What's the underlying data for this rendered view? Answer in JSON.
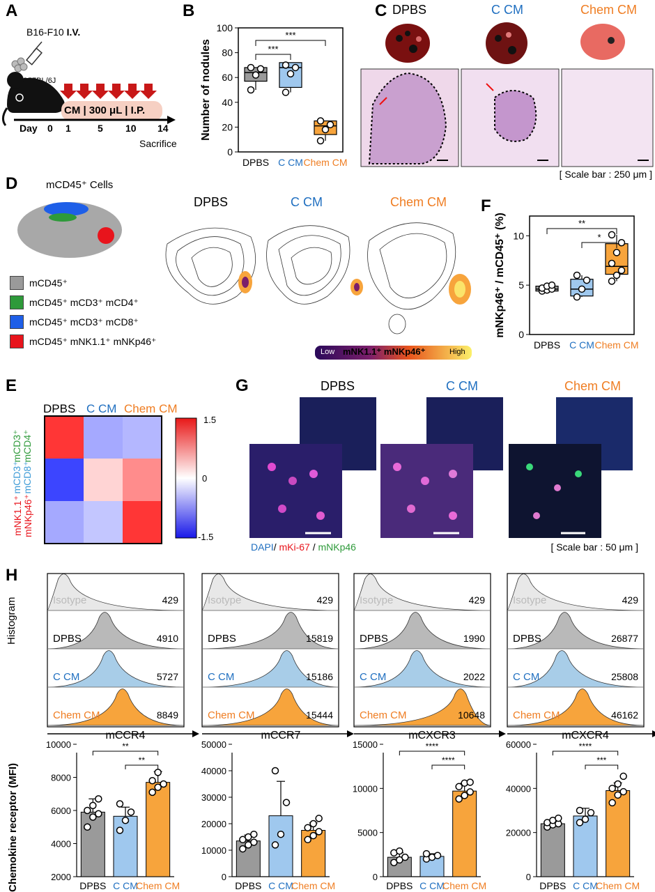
{
  "colors": {
    "gray": "#9a9a9a",
    "blue": "#9fc8ee",
    "orange": "#f7a43c",
    "blueText": "#1f6fc0",
    "orangeText": "#ef7d22",
    "green": "#2e9a3a",
    "red": "#e8141c"
  },
  "panels": {
    "A": {
      "label": "A",
      "title": "B16-F10",
      "title_bold": "I.V.",
      "strain": "C57BL/6J",
      "treatment": "CM | 300 μL | I.P.",
      "day_label": "Day",
      "days": [
        "0",
        "1",
        "5",
        "10",
        "14"
      ],
      "end": "Sacrifice"
    },
    "B": {
      "label": "B"
    },
    "C": {
      "label": "C",
      "groups": [
        "DPBS",
        "C CM",
        "Chem CM"
      ],
      "scale": "[ Scale bar : 250 μm ]"
    },
    "D": {
      "label": "D",
      "title": "mCD45⁺ Cells",
      "legend": [
        "mCD45⁺",
        "mCD45⁺ mCD3⁺ mCD4⁺",
        "mCD45⁺ mCD3⁺ mCD8⁺",
        "mCD45⁺ mNK1.1⁺ mNKp46⁺"
      ],
      "legend_colors": [
        "#9a9a9a",
        "#2e9a3a",
        "#1e5fe8",
        "#e8141c"
      ],
      "groups": [
        "DPBS",
        "C CM",
        "Chem CM"
      ],
      "cbar_low": "Low",
      "cbar_mid": "mNK1.1⁺ mNKp46⁺",
      "cbar_high": "High"
    },
    "E": {
      "label": "E",
      "cols": [
        "DPBS",
        "C CM",
        "Chem CM"
      ],
      "rows": [
        "mCD3⁺ mCD4⁺",
        "mCD3⁺ mCD8⁺",
        "mNK1.1⁺ mNKp46⁺"
      ],
      "cbar_ticks": [
        "1.5",
        "0",
        "-1.5"
      ]
    },
    "F": {
      "label": "F"
    },
    "G": {
      "label": "G",
      "groups": [
        "DPBS",
        "C CM",
        "Chem CM"
      ],
      "stain": [
        "DAPI",
        "/ ",
        "mKi-67",
        " / ",
        "mNKp46"
      ],
      "scale": "[ Scale bar : 50 μm ]"
    },
    "H": {
      "label": "H",
      "hist_ylabel": "Histogram",
      "hist_rows": [
        "Isotype",
        "DPBS",
        "C CM",
        "Chem CM"
      ],
      "markers": [
        {
          "name": "mCCR4",
          "mfi": [
            "429",
            "4910",
            "5727",
            "8849"
          ]
        },
        {
          "name": "mCCR7",
          "mfi": [
            "429",
            "15819",
            "15186",
            "15444"
          ]
        },
        {
          "name": "mCXCR3",
          "mfi": [
            "429",
            "1990",
            "2022",
            "10648"
          ]
        },
        {
          "name": "mCXCR4",
          "mfi": [
            "429",
            "26877",
            "25808",
            "46162"
          ]
        }
      ],
      "bar_ylabel": "Chemokine receptor  (MFI)"
    }
  },
  "chart_data": [
    {
      "type": "box",
      "id": "B",
      "ylabel": "Number of nodules",
      "categories": [
        "DPBS",
        "C CM",
        "Chem CM"
      ],
      "ylim": [
        0,
        100
      ],
      "yticks": [
        0,
        20,
        40,
        60,
        80,
        100
      ],
      "boxes": [
        {
          "q1": 57,
          "median": 64,
          "q3": 68,
          "min": 50,
          "max": 68
        },
        {
          "q1": 52,
          "median": 68,
          "q3": 72,
          "min": 48,
          "max": 72
        },
        {
          "q1": 14,
          "median": 21,
          "q3": 25,
          "min": 9,
          "max": 25
        }
      ],
      "points": [
        [
          50,
          62,
          67,
          68
        ],
        [
          48,
          63,
          68,
          70
        ],
        [
          9,
          18,
          22,
          25
        ]
      ],
      "sig": [
        {
          "from": 0,
          "to": 1,
          "label": "***"
        },
        {
          "from": 0,
          "to": 2,
          "label": "***"
        }
      ]
    },
    {
      "type": "box",
      "id": "F",
      "ylabel": "mNKp46⁺ / mCD45⁺ (%)",
      "categories": [
        "DPBS",
        "C CM",
        "Chem CM"
      ],
      "ylim": [
        0,
        12
      ],
      "yticks": [
        0,
        5,
        10
      ],
      "boxes": [
        {
          "q1": 4.4,
          "median": 4.6,
          "q3": 4.9,
          "min": 4.4,
          "max": 5
        },
        {
          "q1": 3.9,
          "median": 4.6,
          "q3": 5.6,
          "min": 3.8,
          "max": 6
        },
        {
          "q1": 6.1,
          "median": 6.9,
          "q3": 9.2,
          "min": 5.4,
          "max": 10.1
        }
      ],
      "points": [
        [
          4.4,
          4.5,
          4.6,
          4.7,
          4.9,
          5
        ],
        [
          3.8,
          4.6,
          5.5,
          6
        ],
        [
          5.4,
          6,
          6.5,
          7.2,
          8.3,
          9.3,
          10.1
        ]
      ],
      "sig": [
        {
          "from": 1,
          "to": 2,
          "label": "*"
        },
        {
          "from": 0,
          "to": 2,
          "label": "**"
        }
      ]
    },
    {
      "type": "heatmap",
      "id": "E",
      "rows": [
        "mCD3⁺ mCD4⁺",
        "mCD3⁺ mCD8⁺",
        "mNK1.1⁺ mNKp46⁺"
      ],
      "cols": [
        "DPBS",
        "C CM",
        "Chem CM"
      ],
      "values": [
        [
          1.4,
          -0.6,
          -0.5
        ],
        [
          -1.3,
          0.3,
          0.8
        ],
        [
          -0.6,
          -0.4,
          1.4
        ]
      ],
      "range": [
        -1.5,
        1.5
      ]
    },
    {
      "type": "bar",
      "id": "H-mCCR4",
      "title": "mCCR4",
      "categories": [
        "DPBS",
        "C CM",
        "Chem CM"
      ],
      "values": [
        5900,
        5650,
        7700
      ],
      "errors": [
        800,
        550,
        650
      ],
      "ylim": [
        2000,
        10000
      ],
      "yticks": [
        2000,
        4000,
        6000,
        8000,
        10000
      ],
      "points": [
        [
          5000,
          5600,
          5800,
          6000,
          6300,
          6700
        ],
        [
          4800,
          5400,
          5900,
          6400
        ],
        [
          7100,
          7400,
          7600,
          7800,
          8300
        ]
      ],
      "sig": [
        {
          "from": 1,
          "to": 2,
          "label": "**"
        },
        {
          "from": 0,
          "to": 2,
          "label": "**"
        }
      ]
    },
    {
      "type": "bar",
      "id": "H-mCCR7",
      "title": "mCCR7",
      "categories": [
        "DPBS",
        "C CM",
        "Chem CM"
      ],
      "values": [
        13500,
        23000,
        17500
      ],
      "errors": [
        2200,
        13000,
        2800
      ],
      "ylim": [
        0,
        50000
      ],
      "yticks": [
        0,
        10000,
        20000,
        30000,
        40000,
        50000
      ],
      "points": [
        [
          10500,
          12000,
          13000,
          14000,
          15000,
          16000
        ],
        [
          12000,
          16000,
          28000,
          40000
        ],
        [
          14000,
          15500,
          17000,
          18500,
          20000,
          22000
        ]
      ],
      "sig": []
    },
    {
      "type": "bar",
      "id": "H-mCXCR3",
      "title": "mCXCR3",
      "categories": [
        "DPBS",
        "C CM",
        "Chem CM"
      ],
      "values": [
        2200,
        2300,
        9700
      ],
      "errors": [
        500,
        300,
        900
      ],
      "ylim": [
        0,
        15000
      ],
      "yticks": [
        0,
        5000,
        10000,
        15000
      ],
      "points": [
        [
          1600,
          1900,
          2200,
          2700,
          2900
        ],
        [
          2000,
          2200,
          2400,
          2600
        ],
        [
          8800,
          9200,
          9600,
          10200,
          10600,
          10700
        ]
      ],
      "sig": [
        {
          "from": 1,
          "to": 2,
          "label": "****"
        },
        {
          "from": 0,
          "to": 2,
          "label": "****"
        }
      ]
    },
    {
      "type": "bar",
      "id": "H-mCXCR4",
      "title": "mCXCR4",
      "categories": [
        "DPBS",
        "C CM",
        "Chem CM"
      ],
      "values": [
        24000,
        27500,
        39000
      ],
      "errors": [
        1500,
        3500,
        3500
      ],
      "ylim": [
        0,
        60000
      ],
      "yticks": [
        0,
        20000,
        40000,
        60000
      ],
      "points": [
        [
          22500,
          23500,
          24000,
          24500,
          25500,
          26500
        ],
        [
          24500,
          26000,
          29000,
          30000
        ],
        [
          33500,
          37000,
          38500,
          40000,
          42000,
          45500
        ]
      ],
      "sig": [
        {
          "from": 1,
          "to": 2,
          "label": "***"
        },
        {
          "from": 0,
          "to": 2,
          "label": "****"
        }
      ]
    }
  ]
}
